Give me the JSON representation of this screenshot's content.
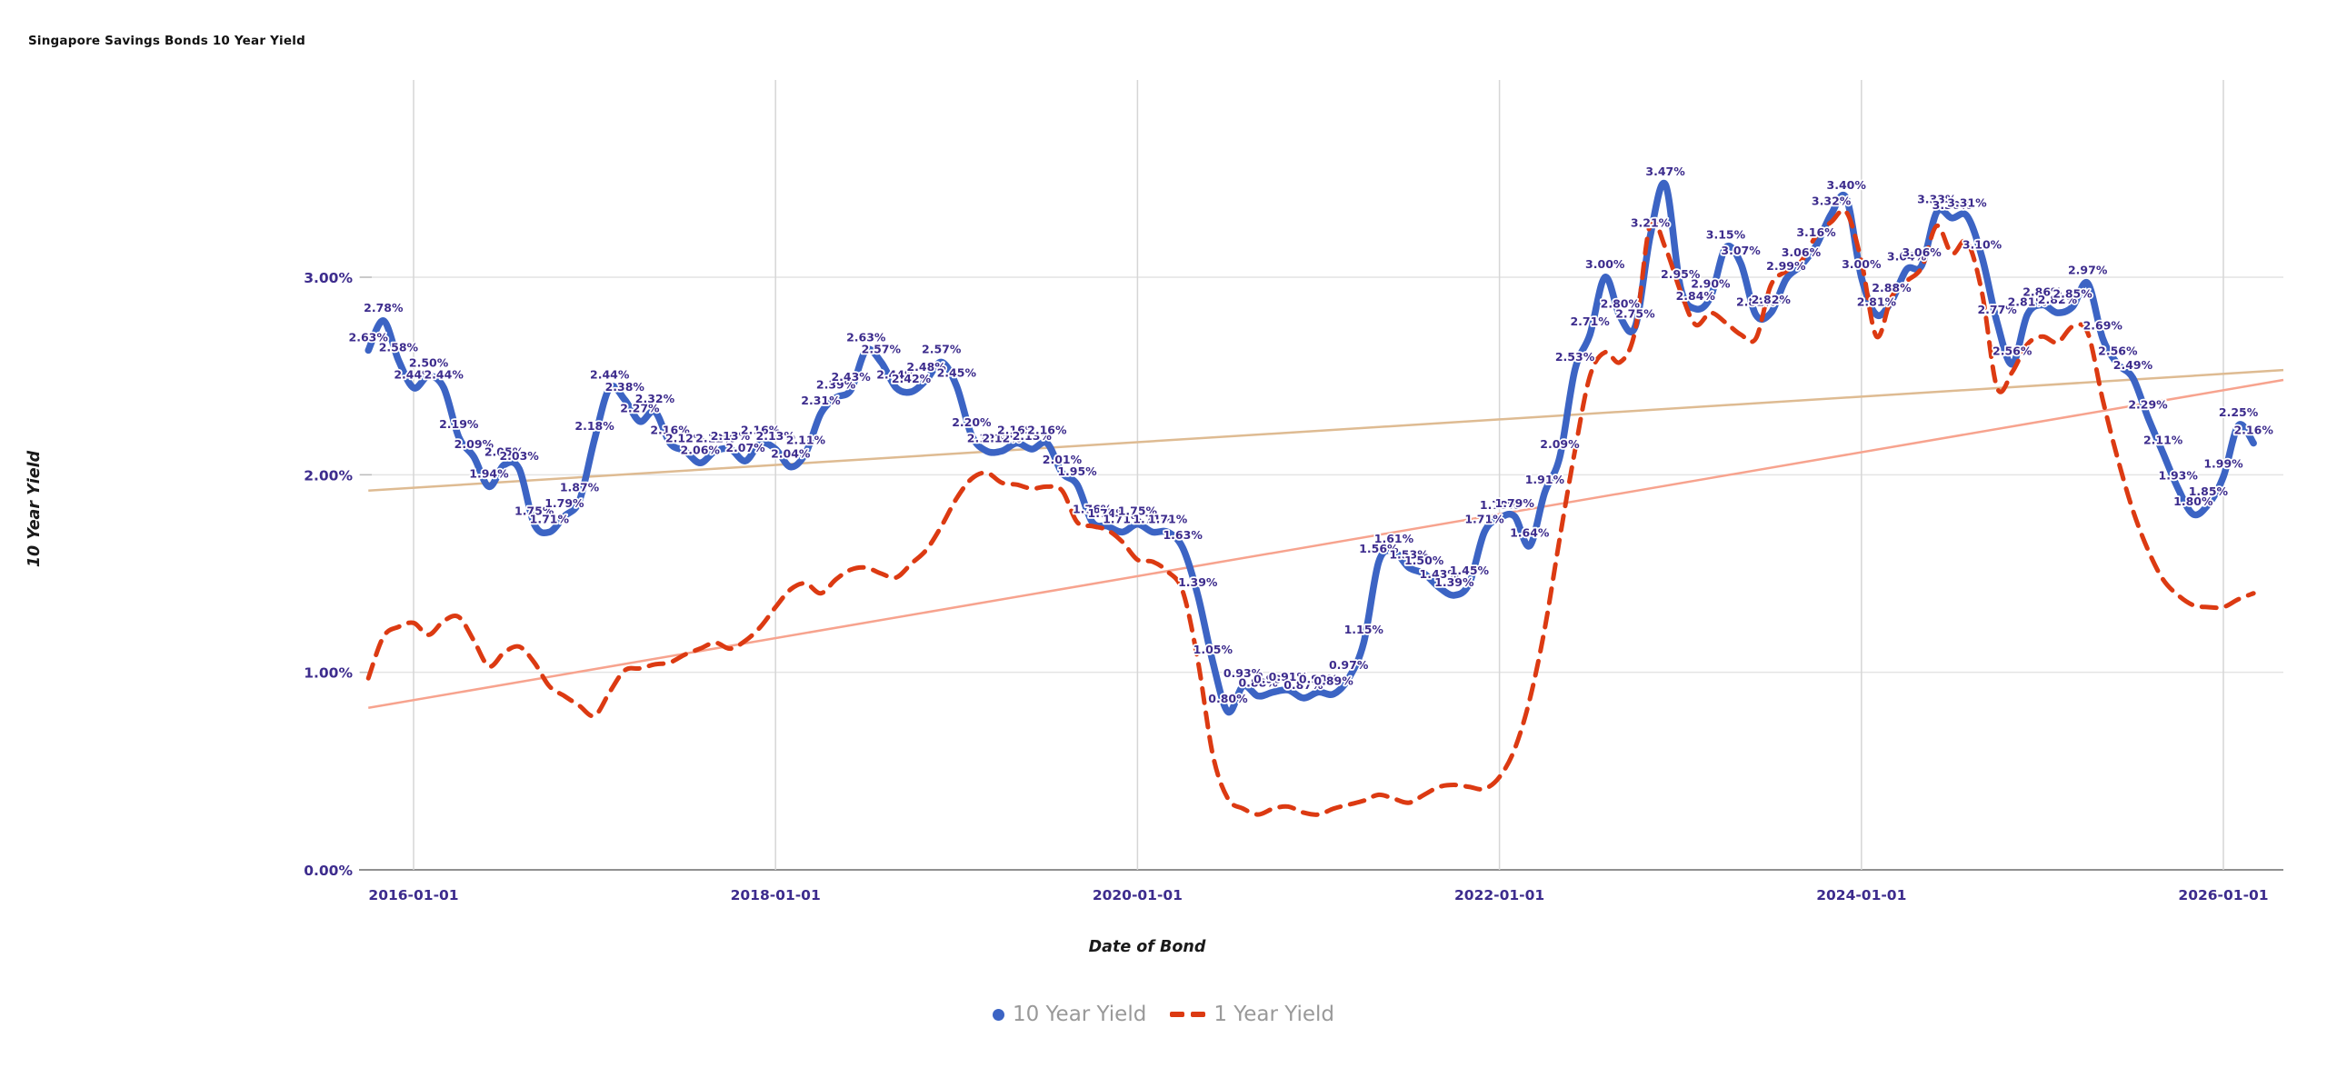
{
  "title": "Singapore Savings Bonds 10 Year Yield",
  "axes": {
    "y_title": "10 Year Yield",
    "x_title": "Date of Bond",
    "y_tick_labels": [
      "0.00%",
      "1.00%",
      "2.00%",
      "3.00%"
    ],
    "x_tick_labels": [
      "2016-01-01",
      "2018-01-01",
      "2020-01-01",
      "2022-01-01",
      "2024-01-01",
      "2026-01-01"
    ]
  },
  "legend": [
    {
      "label": "10 Year Yield",
      "marker": "dot",
      "color": "#3c64c4"
    },
    {
      "label": "1 Year Yield",
      "marker": "dashes",
      "color": "#dc3a12"
    }
  ],
  "colors": {
    "series_10y": "#3c64c4",
    "series_1y": "#dc3a12",
    "data_label": "#3d2c8d",
    "tick_label": "#3d2c8d",
    "trend_10y": "#debb92",
    "trend_1y": "#f7a38e",
    "grid_h": "#e4e4e4",
    "grid_v": "#d6d6d6",
    "axis_line": "#909090",
    "legend_text": "#999999",
    "title_text": "#111111"
  },
  "chart_data": {
    "type": "line",
    "title": "Singapore Savings Bonds 10 Year Yield",
    "xlabel": "Date of Bond",
    "ylabel": "10 Year Yield",
    "x_start_month": "2015-10",
    "x_step_months": 1,
    "x_tick_labels": [
      "2016-01-01",
      "2018-01-01",
      "2020-01-01",
      "2022-01-01",
      "2024-01-01",
      "2026-01-01"
    ],
    "y_tick_values": [
      0,
      1,
      2,
      3
    ],
    "y_tick_labels": [
      "0.00%",
      "1.00%",
      "2.00%",
      "3.00%"
    ],
    "ylim": [
      0,
      4.0
    ],
    "grid": true,
    "legend_position": "bottom",
    "series": [
      {
        "name": "10 Year Yield",
        "style": "solid",
        "color": "#3c64c4",
        "point_labels": true,
        "label_format": "{value}%",
        "values": [
          2.63,
          2.78,
          2.58,
          2.44,
          2.5,
          2.44,
          2.19,
          2.09,
          1.94,
          2.05,
          2.03,
          1.75,
          1.71,
          1.79,
          1.87,
          2.18,
          2.44,
          2.38,
          2.27,
          2.32,
          2.16,
          2.12,
          2.06,
          2.12,
          2.13,
          2.07,
          2.16,
          2.13,
          2.04,
          2.11,
          2.31,
          2.39,
          2.43,
          2.63,
          2.57,
          2.44,
          2.42,
          2.48,
          2.57,
          2.45,
          2.2,
          2.12,
          2.12,
          2.16,
          2.13,
          2.16,
          2.01,
          1.95,
          1.76,
          1.74,
          1.71,
          1.75,
          1.71,
          1.71,
          1.63,
          1.39,
          1.05,
          0.8,
          0.93,
          0.88,
          0.9,
          0.91,
          0.87,
          0.9,
          0.89,
          0.97,
          1.15,
          1.56,
          1.61,
          1.53,
          1.5,
          1.43,
          1.39,
          1.45,
          1.71,
          1.78,
          1.79,
          1.64,
          1.91,
          2.09,
          2.53,
          2.71,
          3.0,
          2.8,
          2.75,
          3.21,
          3.47,
          2.95,
          2.84,
          2.9,
          3.15,
          3.07,
          2.81,
          2.82,
          2.99,
          3.06,
          3.16,
          3.32,
          3.4,
          3.0,
          2.81,
          2.88,
          3.04,
          3.06,
          3.33,
          3.3,
          3.31,
          3.1,
          2.77,
          2.56,
          2.81,
          2.86,
          2.82,
          2.85,
          2.97,
          2.69,
          2.56,
          2.49,
          2.29,
          2.11,
          1.93,
          1.8,
          1.85,
          1.99,
          2.25,
          2.16
        ]
      },
      {
        "name": "1 Year Yield",
        "style": "dashed",
        "color": "#dc3a12",
        "point_labels": false,
        "values": [
          0.97,
          1.18,
          1.23,
          1.25,
          1.19,
          1.26,
          1.28,
          1.16,
          1.03,
          1.1,
          1.13,
          1.05,
          0.93,
          0.88,
          0.83,
          0.78,
          0.9,
          1.01,
          1.02,
          1.04,
          1.05,
          1.09,
          1.12,
          1.15,
          1.12,
          1.16,
          1.23,
          1.33,
          1.42,
          1.45,
          1.4,
          1.47,
          1.52,
          1.53,
          1.5,
          1.48,
          1.55,
          1.62,
          1.74,
          1.88,
          1.98,
          2.01,
          1.96,
          1.95,
          1.93,
          1.94,
          1.92,
          1.76,
          1.74,
          1.72,
          1.66,
          1.57,
          1.56,
          1.51,
          1.41,
          1.06,
          0.58,
          0.36,
          0.31,
          0.28,
          0.31,
          0.32,
          0.29,
          0.28,
          0.31,
          0.33,
          0.35,
          0.38,
          0.36,
          0.34,
          0.38,
          0.42,
          0.43,
          0.42,
          0.41,
          0.47,
          0.61,
          0.86,
          1.22,
          1.68,
          2.12,
          2.5,
          2.62,
          2.57,
          2.73,
          3.27,
          3.15,
          2.93,
          2.76,
          2.82,
          2.77,
          2.71,
          2.69,
          2.96,
          3.03,
          3.08,
          3.21,
          3.28,
          3.33,
          3.08,
          2.7,
          2.9,
          2.98,
          3.05,
          3.26,
          3.12,
          3.18,
          2.92,
          2.44,
          2.52,
          2.66,
          2.7,
          2.67,
          2.75,
          2.72,
          2.38,
          2.08,
          1.82,
          1.62,
          1.47,
          1.39,
          1.34,
          1.33,
          1.33,
          1.37,
          1.4
        ]
      }
    ],
    "trendlines": [
      {
        "name": "10 Year Yield trend",
        "color": "#debb92",
        "y_at_left": 1.92,
        "y_at_right": 2.53
      },
      {
        "name": "1 Year Yield trend",
        "color": "#f7a38e",
        "y_at_left": 0.82,
        "y_at_right": 2.48
      }
    ]
  }
}
